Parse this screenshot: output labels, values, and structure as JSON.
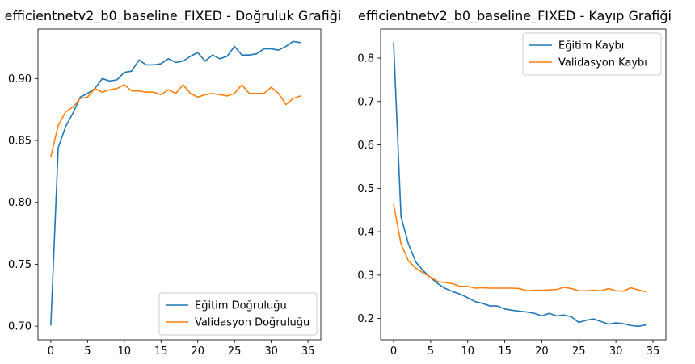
{
  "colors": {
    "train": "#1f77b4",
    "val": "#ff7f0e",
    "axis": "#000000",
    "legend_border": "#cccccc"
  },
  "chart_data": [
    {
      "type": "line",
      "title": "efficientnetv2_b0_baseline_FIXED - Doğruluk Grafiği",
      "xlabel": "",
      "ylabel": "",
      "xlim": [
        -1.75,
        36.75
      ],
      "ylim": [
        0.689,
        0.94
      ],
      "xticks": [
        0,
        5,
        10,
        15,
        20,
        25,
        30,
        35
      ],
      "xtick_labels": [
        "0",
        "5",
        "10",
        "15",
        "20",
        "25",
        "30",
        "35"
      ],
      "yticks": [
        0.7,
        0.75,
        0.8,
        0.85,
        0.9
      ],
      "ytick_labels": [
        "0.70",
        "0.75",
        "0.80",
        "0.85",
        "0.90"
      ],
      "grid": false,
      "legend_position": "lower-right",
      "x": [
        0,
        1,
        2,
        3,
        4,
        5,
        6,
        7,
        8,
        9,
        10,
        11,
        12,
        13,
        14,
        15,
        16,
        17,
        18,
        19,
        20,
        21,
        22,
        23,
        24,
        25,
        26,
        27,
        28,
        29,
        30,
        31,
        32,
        33,
        34
      ],
      "series": [
        {
          "name": "Eğitim Doğruluğu",
          "color": "#1f77b4",
          "values": [
            0.701,
            0.844,
            0.861,
            0.872,
            0.885,
            0.888,
            0.892,
            0.9,
            0.898,
            0.899,
            0.905,
            0.906,
            0.915,
            0.911,
            0.911,
            0.912,
            0.916,
            0.913,
            0.914,
            0.918,
            0.921,
            0.914,
            0.919,
            0.916,
            0.918,
            0.926,
            0.919,
            0.919,
            0.92,
            0.924,
            0.924,
            0.923,
            0.926,
            0.93,
            0.929
          ]
        },
        {
          "name": "Validasyon Doğruluğu",
          "color": "#ff7f0e",
          "values": [
            0.837,
            0.862,
            0.873,
            0.877,
            0.884,
            0.885,
            0.892,
            0.889,
            0.891,
            0.892,
            0.895,
            0.89,
            0.89,
            0.889,
            0.889,
            0.887,
            0.891,
            0.888,
            0.895,
            0.888,
            0.885,
            0.887,
            0.888,
            0.887,
            0.886,
            0.888,
            0.895,
            0.888,
            0.888,
            0.888,
            0.893,
            0.888,
            0.879,
            0.884,
            0.886
          ]
        }
      ]
    },
    {
      "type": "line",
      "title": "efficientnetv2_b0_baseline_FIXED - Kayıp Grafiği",
      "xlabel": "",
      "ylabel": "",
      "xlim": [
        -1.75,
        36.75
      ],
      "ylim": [
        0.151,
        0.867
      ],
      "xticks": [
        0,
        5,
        10,
        15,
        20,
        25,
        30,
        35
      ],
      "xtick_labels": [
        "0",
        "5",
        "10",
        "15",
        "20",
        "25",
        "30",
        "35"
      ],
      "yticks": [
        0.2,
        0.3,
        0.4,
        0.5,
        0.6,
        0.7,
        0.8
      ],
      "ytick_labels": [
        "0.2",
        "0.3",
        "0.4",
        "0.5",
        "0.6",
        "0.7",
        "0.8"
      ],
      "grid": false,
      "legend_position": "upper-right",
      "x": [
        0,
        1,
        2,
        3,
        4,
        5,
        6,
        7,
        8,
        9,
        10,
        11,
        12,
        13,
        14,
        15,
        16,
        17,
        18,
        19,
        20,
        21,
        22,
        23,
        24,
        25,
        26,
        27,
        28,
        29,
        30,
        31,
        32,
        33,
        34
      ],
      "series": [
        {
          "name": "Eğitim Kaybı",
          "color": "#1f77b4",
          "values": [
            0.835,
            0.435,
            0.372,
            0.33,
            0.31,
            0.294,
            0.28,
            0.269,
            0.262,
            0.256,
            0.248,
            0.239,
            0.235,
            0.229,
            0.229,
            0.222,
            0.219,
            0.217,
            0.215,
            0.212,
            0.206,
            0.212,
            0.206,
            0.208,
            0.204,
            0.191,
            0.196,
            0.199,
            0.193,
            0.187,
            0.19,
            0.188,
            0.184,
            0.182,
            0.185
          ]
        },
        {
          "name": "Validasyon Kaybı",
          "color": "#ff7f0e",
          "values": [
            0.463,
            0.372,
            0.333,
            0.316,
            0.305,
            0.295,
            0.285,
            0.283,
            0.28,
            0.274,
            0.274,
            0.27,
            0.271,
            0.27,
            0.27,
            0.27,
            0.27,
            0.269,
            0.264,
            0.265,
            0.265,
            0.266,
            0.267,
            0.272,
            0.269,
            0.264,
            0.264,
            0.265,
            0.264,
            0.269,
            0.264,
            0.263,
            0.271,
            0.266,
            0.262
          ]
        }
      ]
    }
  ]
}
